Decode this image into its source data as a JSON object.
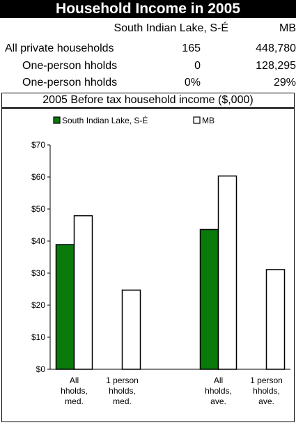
{
  "header": {
    "title": "Household Income in 2005"
  },
  "stats": {
    "columns": [
      "South Indian Lake, S-É",
      "MB"
    ],
    "rows": [
      {
        "label": "All private households",
        "local": "165",
        "province": "448,780"
      },
      {
        "label": "One-person hholds",
        "local": "0",
        "province": "128,295"
      },
      {
        "label": "One-person hholds",
        "local": "0%",
        "province": "29%"
      }
    ]
  },
  "subtitle": "2005 Before tax household income ($,000)",
  "chart_data": {
    "type": "bar",
    "categories": [
      [
        "All",
        "hholds,",
        "med."
      ],
      [
        "1 person",
        "hholds,",
        "med."
      ],
      [],
      [
        "All",
        "hholds,",
        "ave."
      ],
      [
        "1 person",
        "hholds,",
        "ave."
      ]
    ],
    "series": [
      {
        "name": "South Indian Lake, S-É",
        "color": "#0a7a0a",
        "values": [
          38.9,
          0,
          null,
          43.6,
          0
        ]
      },
      {
        "name": "MB",
        "color": "#ffffff",
        "values": [
          47.9,
          24.7,
          null,
          60.3,
          31.1
        ]
      }
    ],
    "ylim": [
      0,
      70
    ],
    "yticks": [
      0,
      10,
      20,
      30,
      40,
      50,
      60,
      70
    ],
    "ytick_labels": [
      "$0",
      "$10",
      "$20",
      "$30",
      "$40",
      "$50",
      "$60",
      "$70"
    ],
    "legend_position": "top",
    "grid": false
  }
}
